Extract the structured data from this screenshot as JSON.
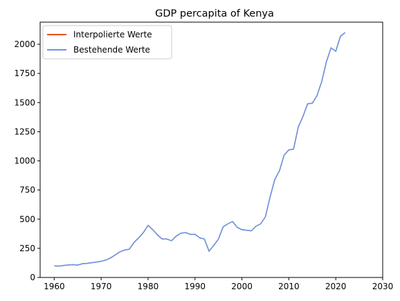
{
  "chart_data": {
    "type": "line",
    "title": "GDP percapita of Kenya",
    "xlabel": "",
    "ylabel": "",
    "xlim": [
      1957,
      2030
    ],
    "ylim": [
      0,
      2190
    ],
    "xticks": [
      1960,
      1970,
      1980,
      1990,
      2000,
      2010,
      2020,
      2030
    ],
    "yticks": [
      0,
      250,
      500,
      750,
      1000,
      1250,
      1500,
      1750,
      2000
    ],
    "grid": false,
    "legend_position": "top-left",
    "series": [
      {
        "name": "Interpolierte Werte",
        "color": "#e8501a",
        "x": [
          1960,
          1961,
          1962,
          1963,
          1964,
          1965,
          1966,
          1967,
          1968,
          1969,
          1970,
          1971,
          1972,
          1973,
          1974,
          1975,
          1976,
          1977,
          1978,
          1979,
          1980,
          1981,
          1982,
          1983,
          1984,
          1985,
          1986,
          1987,
          1988,
          1989,
          1990,
          1991,
          1992,
          1993,
          1994,
          1995,
          1996,
          1997,
          1998,
          1999,
          2000,
          2001,
          2002,
          2003,
          2004,
          2005,
          2006,
          2007,
          2008,
          2009,
          2010,
          2011,
          2012,
          2013,
          2014,
          2015,
          2016,
          2017,
          2018,
          2019,
          2020,
          2021,
          2022
        ],
        "y": [
          100,
          97,
          103,
          107,
          110,
          106,
          118,
          121,
          127,
          132,
          139,
          149,
          168,
          193,
          220,
          235,
          243,
          300,
          340,
          385,
          447,
          410,
          365,
          330,
          330,
          315,
          355,
          380,
          385,
          370,
          370,
          340,
          330,
          225,
          275,
          330,
          435,
          460,
          480,
          430,
          410,
          405,
          400,
          440,
          460,
          520,
          690,
          840,
          915,
          1050,
          1095,
          1100,
          1290,
          1380,
          1490,
          1495,
          1560,
          1680,
          1850,
          1970,
          1940,
          2070,
          2100
        ]
      },
      {
        "name": "Bestehende Werte",
        "color": "#6495ed",
        "x": [
          1960,
          1961,
          1962,
          1963,
          1964,
          1965,
          1966,
          1967,
          1968,
          1969,
          1970,
          1971,
          1972,
          1973,
          1974,
          1975,
          1976,
          1977,
          1978,
          1979,
          1980,
          1981,
          1982,
          1983,
          1984,
          1985,
          1986,
          1987,
          1988,
          1989,
          1990,
          1991,
          1992,
          1993,
          1994,
          1995,
          1996,
          1997,
          1998,
          1999,
          2000,
          2001,
          2002,
          2003,
          2004,
          2005,
          2006,
          2007,
          2008,
          2009,
          2010,
          2011,
          2012,
          2013,
          2014,
          2015,
          2016,
          2017,
          2018,
          2019,
          2020,
          2021,
          2022
        ],
        "y": [
          100,
          97,
          103,
          107,
          110,
          106,
          118,
          121,
          127,
          132,
          139,
          149,
          168,
          193,
          220,
          235,
          243,
          300,
          340,
          385,
          447,
          410,
          365,
          330,
          330,
          315,
          355,
          380,
          385,
          370,
          370,
          340,
          330,
          225,
          275,
          330,
          435,
          460,
          480,
          430,
          410,
          405,
          400,
          440,
          460,
          520,
          690,
          840,
          915,
          1050,
          1095,
          1100,
          1290,
          1380,
          1490,
          1495,
          1560,
          1680,
          1850,
          1970,
          1940,
          2070,
          2100
        ]
      }
    ]
  }
}
